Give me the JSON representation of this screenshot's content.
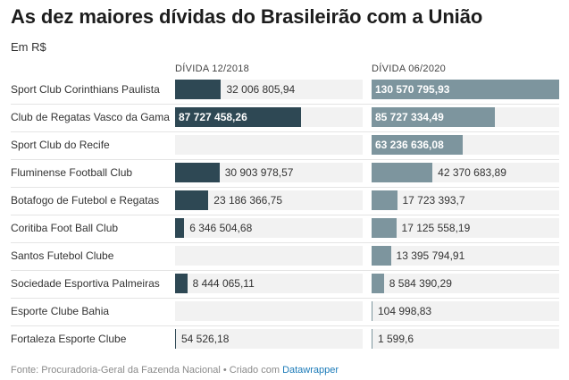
{
  "title": "As dez maiores dívidas do Brasileirão com a União",
  "subtitle": "Em R$",
  "footer": {
    "source": "Fonte: Procuradoria-Geral da Fazenda Nacional • Criado com ",
    "link": "Datawrapper"
  },
  "colors": {
    "series_2018": "#2e4854",
    "series_2020": "#7d959e",
    "track": "#f2f2f2"
  },
  "chart_data": {
    "type": "bar",
    "orientation": "horizontal",
    "layout": "split-bars",
    "title": "As dez maiores dívidas do Brasileirão com a União",
    "unit": "Em R$",
    "xlim": [
      0,
      130570795.93
    ],
    "categories": [
      "Sport Club Corinthians Paulista",
      "Club de Regatas Vasco da Gama",
      "Sport Club do Recife",
      "Fluminense Football Club",
      "Botafogo de Futebol e Regatas",
      "Coritiba Foot Ball Club",
      "Santos Futebol Clube",
      "Sociedade Esportiva Palmeiras",
      "Esporte Clube Bahia",
      "Fortaleza Esporte Clube"
    ],
    "series": [
      {
        "name": "DÍVIDA 12/2018",
        "values": [
          32006805.94,
          87727458.26,
          null,
          30903978.57,
          23186366.75,
          6346504.68,
          null,
          8444065.11,
          null,
          54526.18
        ],
        "labels": [
          "32 006 805,94",
          "87 727 458,26",
          "",
          "30 903 978,57",
          "23 186 366,75",
          "6 346 504,68",
          "",
          "8 444 065,11",
          "",
          "54 526,18"
        ]
      },
      {
        "name": "DÍVIDA 06/2020",
        "values": [
          130570795.93,
          85727334.49,
          63236636.08,
          42370683.89,
          17723393.7,
          17125558.19,
          13395794.91,
          8584390.29,
          104998.83,
          1599.6
        ],
        "labels": [
          "130 570 795,93",
          "85 727 334,49",
          "63 236 636,08",
          "42 370 683,89",
          "17 723 393,7",
          "17 125 558,19",
          "13 395 794,91",
          "8 584 390,29",
          "104 998,83",
          "1 599,6"
        ]
      }
    ]
  }
}
